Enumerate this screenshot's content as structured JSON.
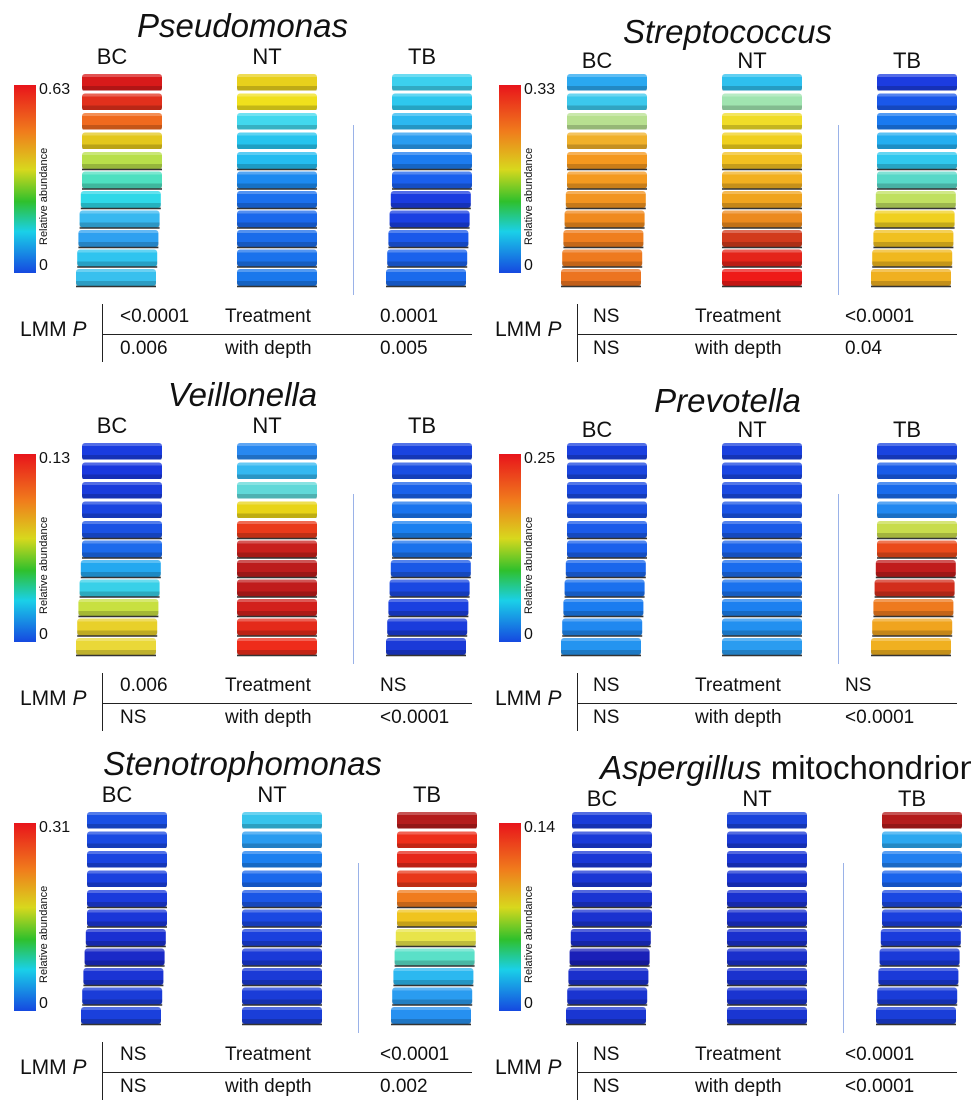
{
  "common": {
    "columns": [
      "BC",
      "NT",
      "TB"
    ],
    "colorbar_title": "Relative abundance",
    "colorbar_min": "0",
    "lmm_label": "LMM ",
    "lmm_p": "P",
    "row_labels": [
      "Treatment",
      "with depth"
    ]
  },
  "panels": [
    {
      "title_italic": "Pseudomonas",
      "title_plain": "",
      "colorbar_max": "0.63",
      "treatment": [
        "<0.0001",
        "0.0001"
      ],
      "depth": [
        "0.006",
        "0.005"
      ],
      "tubes": {
        "BC": [
          "#d81a1a",
          "#e2301c",
          "#f06a1e",
          "#e3c71c",
          "#b8df4a",
          "#4ee0c0",
          "#2ed8e8",
          "#38b8f0",
          "#2ea0f0",
          "#2fc4ef",
          "#38c0ee"
        ],
        "NT": [
          "#e8d01c",
          "#f0e01c",
          "#42d8ee",
          "#26c4ee",
          "#24bcf0",
          "#1c8af0",
          "#1a70ee",
          "#1a68ec",
          "#1a6cea",
          "#1a72ec",
          "#1a78ec"
        ],
        "TB": [
          "#3cd0ee",
          "#2ec8ee",
          "#2cb8f0",
          "#2a9cf0",
          "#1c7cf0",
          "#1a60ee",
          "#1a3ce0",
          "#1a40e2",
          "#1a58ea",
          "#1a62ec",
          "#1a6aec"
        ]
      }
    },
    {
      "title_italic": "Streptococcus",
      "title_plain": "",
      "colorbar_max": "0.33",
      "treatment": [
        "NS",
        "<0.0001"
      ],
      "depth": [
        "NS",
        "0.04"
      ],
      "tubes": {
        "BC": [
          "#2aa8f0",
          "#3cc8ec",
          "#b8e090",
          "#f0b02a",
          "#f4981e",
          "#f49a20",
          "#f29420",
          "#f08a1e",
          "#ef7e1e",
          "#ee7a1e",
          "#ec7420"
        ],
        "NT": [
          "#2ec0ee",
          "#a0e4b0",
          "#f0dc28",
          "#f0d01e",
          "#f2c020",
          "#f2b020",
          "#f0a41e",
          "#ec8a1e",
          "#d23a1c",
          "#e4241a",
          "#ee1a18"
        ],
        "TB": [
          "#1c3ce0",
          "#1a58ea",
          "#1a7af0",
          "#24aef0",
          "#30c8ee",
          "#58d8c8",
          "#c0e060",
          "#f0d020",
          "#f0c020",
          "#f0b81e",
          "#f0b020"
        ]
      }
    },
    {
      "title_italic": "Veillonella",
      "title_plain": "",
      "colorbar_max": "0.13",
      "treatment": [
        "0.006",
        "NS"
      ],
      "depth": [
        "NS",
        "<0.0001"
      ],
      "tubes": {
        "BC": [
          "#1a3ce0",
          "#1a38de",
          "#1a3cdc",
          "#1a44e0",
          "#1a52e4",
          "#1c6aec",
          "#24a8f0",
          "#38d0e8",
          "#c8e040",
          "#e8d02a",
          "#ead838"
        ],
        "NT": [
          "#2888f0",
          "#34b8f0",
          "#60d8d8",
          "#e8d418",
          "#ea3a1a",
          "#c8201c",
          "#bc1c1c",
          "#c01c1c",
          "#d2201c",
          "#e42a1a",
          "#ee2c1a"
        ],
        "TB": [
          "#1a44e0",
          "#1a4ee2",
          "#1a62ea",
          "#1a74ee",
          "#1a80f0",
          "#1a72ec",
          "#1a58e6",
          "#1a48e2",
          "#1a40e0",
          "#1a3cdc",
          "#1a3ad8"
        ]
      }
    },
    {
      "title_italic": "Prevotella",
      "title_plain": "",
      "colorbar_max": "0.25",
      "treatment": [
        "NS",
        "NS"
      ],
      "depth": [
        "NS",
        "<0.0001"
      ],
      "tubes": {
        "BC": [
          "#1a40e0",
          "#1a46e0",
          "#1a4ae2",
          "#1a50e4",
          "#1a5aea",
          "#1a60ec",
          "#1a66ec",
          "#1a70ee",
          "#1a7cf0",
          "#2088f0",
          "#2494f0"
        ],
        "NT": [
          "#1a40de",
          "#1a46e2",
          "#1a4ae2",
          "#1a54e6",
          "#1a5ae8",
          "#1a62ea",
          "#1a6cee",
          "#1a72ee",
          "#1c80f0",
          "#2290f0",
          "#2a9cf0"
        ],
        "TB": [
          "#1a44e0",
          "#1a5ce8",
          "#1a6cec",
          "#2288f0",
          "#c8dc4c",
          "#ea4a1a",
          "#c01c1c",
          "#d22e1c",
          "#ee7a1e",
          "#f0a41e",
          "#f0b020"
        ]
      }
    },
    {
      "title_italic": "Stenotrophomonas",
      "title_plain": "",
      "colorbar_max": "0.31",
      "treatment": [
        "NS",
        "<0.0001"
      ],
      "depth": [
        "NS",
        "0.002"
      ],
      "tubes": {
        "BC": [
          "#1a50e4",
          "#1a4ae2",
          "#1a44e0",
          "#1a40de",
          "#1a3adc",
          "#1a36d8",
          "#1a30d2",
          "#1a2ac8",
          "#1a34d4",
          "#1a3cd8",
          "#1a40dc"
        ],
        "NT": [
          "#38c4ec",
          "#2a9cf0",
          "#1c80f0",
          "#1a68ec",
          "#1a56e6",
          "#1a48e2",
          "#1a40de",
          "#1a3ad8",
          "#1a3ad6",
          "#1a3cd8",
          "#1a3ed8"
        ],
        "TB": [
          "#b41c1c",
          "#ee2e1a",
          "#e6281a",
          "#e8381a",
          "#f07c1e",
          "#f0c41e",
          "#e8e44a",
          "#5ae0c8",
          "#2cb8f0",
          "#2a9cf0",
          "#2690f0"
        ]
      }
    },
    {
      "title_italic": "Aspergillus",
      "title_plain": " mitochondrion",
      "colorbar_max": "0.14",
      "treatment": [
        "NS",
        "<0.0001"
      ],
      "depth": [
        "NS",
        "<0.0001"
      ],
      "tubes": {
        "BC": [
          "#1a3cd8",
          "#1a3ad8",
          "#1a38d6",
          "#1a36d4",
          "#1a34d2",
          "#1a32d0",
          "#1a2ecc",
          "#1a20b8",
          "#1a30cc",
          "#1a34d0",
          "#1a36d2"
        ],
        "NT": [
          "#1a44dc",
          "#1a3ad6",
          "#1a36d4",
          "#1a34d2",
          "#1a32d0",
          "#1a30ce",
          "#1a30ce",
          "#1a30cc",
          "#1a32ce",
          "#1a34d0",
          "#1a36d2"
        ],
        "TB": [
          "#b41c1c",
          "#2ca8f0",
          "#2280f0",
          "#1a64ec",
          "#1a48e2",
          "#1a40de",
          "#1a3cdc",
          "#1a3ad8",
          "#1a3ad8",
          "#1a3cd8",
          "#1a3ed8"
        ]
      }
    }
  ]
}
